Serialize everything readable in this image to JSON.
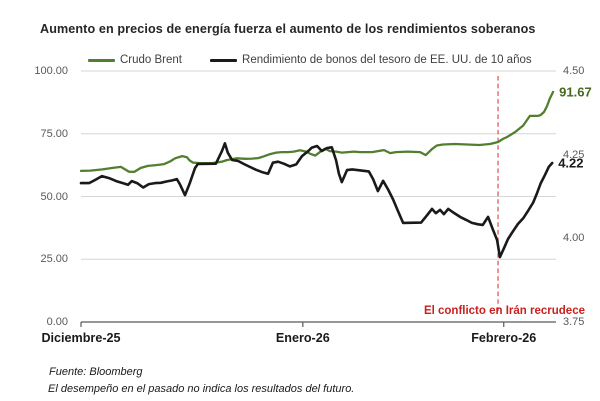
{
  "chart": {
    "title": "Aumento en precios de energía fuerza el aumento de los rendimientos soberanos",
    "legend": [
      {
        "label": "Crudo Brent",
        "color": "#527f2f"
      },
      {
        "label": "Rendimiento de bonos del tesoro de EE. UU. de 10 años",
        "color": "#1a1a1a"
      }
    ],
    "source": "Fuente: Bloomberg",
    "disclaimer": "El desempeño en el pasado no indica los resultados del futuro."
  },
  "chart_data": {
    "type": "line",
    "title": "Aumento en precios de energía fuerza el aumento de los rendimientos soberanos",
    "grid": true,
    "legend_position": "top",
    "x_axis": {
      "tick_labels": [
        "Diciembre-25",
        "Enero-26",
        "Febrero-26"
      ],
      "tick_positions": [
        0.0,
        0.467,
        0.89
      ]
    },
    "y_axis_left": {
      "range": [
        0,
        100
      ],
      "tick_values": [
        100,
        75,
        50,
        25,
        0
      ],
      "tick_labels": [
        "100.00",
        "75.00",
        "50.00",
        "25.00",
        "0.00"
      ]
    },
    "y_axis_right": {
      "range": [
        3.75,
        4.5
      ],
      "tick_values": [
        4.5,
        4.25,
        4.0,
        3.75
      ],
      "tick_labels": [
        "4.50",
        "4.25",
        "4.00",
        "3.75"
      ]
    },
    "annotation": {
      "text": "El conflicto en Irán recrudece",
      "x": 0.878,
      "text_color": "#c9211e",
      "line_color": "#e06666",
      "line_style": "dashed"
    },
    "series": [
      {
        "name": "Crudo Brent",
        "axis": "left",
        "color": "#527f2f",
        "end_label": "91.67",
        "end_label_color": "#44691f",
        "last_value": 91.67,
        "points": [
          [
            0.0,
            60.2
          ],
          [
            0.02,
            60.3
          ],
          [
            0.045,
            60.8
          ],
          [
            0.067,
            61.4
          ],
          [
            0.084,
            61.8
          ],
          [
            0.101,
            59.9
          ],
          [
            0.112,
            59.8
          ],
          [
            0.126,
            61.4
          ],
          [
            0.141,
            62.2
          ],
          [
            0.158,
            62.5
          ],
          [
            0.175,
            62.9
          ],
          [
            0.187,
            63.9
          ],
          [
            0.198,
            65.2
          ],
          [
            0.213,
            66.1
          ],
          [
            0.223,
            65.6
          ],
          [
            0.229,
            64.3
          ],
          [
            0.236,
            63.5
          ],
          [
            0.251,
            63.3
          ],
          [
            0.276,
            63.3
          ],
          [
            0.297,
            63.9
          ],
          [
            0.307,
            64.5
          ],
          [
            0.318,
            64.9
          ],
          [
            0.328,
            65.2
          ],
          [
            0.347,
            65.0
          ],
          [
            0.36,
            65.1
          ],
          [
            0.373,
            65.3
          ],
          [
            0.385,
            66.0
          ],
          [
            0.398,
            66.9
          ],
          [
            0.411,
            67.5
          ],
          [
            0.423,
            67.7
          ],
          [
            0.436,
            67.7
          ],
          [
            0.448,
            67.9
          ],
          [
            0.461,
            68.4
          ],
          [
            0.474,
            67.9
          ],
          [
            0.484,
            66.9
          ],
          [
            0.493,
            66.3
          ],
          [
            0.503,
            67.7
          ],
          [
            0.514,
            69.1
          ],
          [
            0.524,
            68.1
          ],
          [
            0.537,
            67.9
          ],
          [
            0.549,
            67.5
          ],
          [
            0.562,
            67.7
          ],
          [
            0.575,
            67.9
          ],
          [
            0.587,
            67.7
          ],
          [
            0.613,
            67.7
          ],
          [
            0.625,
            68.1
          ],
          [
            0.638,
            68.5
          ],
          [
            0.651,
            67.3
          ],
          [
            0.663,
            67.7
          ],
          [
            0.688,
            67.9
          ],
          [
            0.714,
            67.7
          ],
          [
            0.726,
            66.5
          ],
          [
            0.739,
            68.9
          ],
          [
            0.749,
            70.3
          ],
          [
            0.762,
            70.7
          ],
          [
            0.787,
            70.9
          ],
          [
            0.813,
            70.7
          ],
          [
            0.838,
            70.5
          ],
          [
            0.861,
            70.9
          ],
          [
            0.878,
            71.7
          ],
          [
            0.888,
            72.9
          ],
          [
            0.897,
            73.7
          ],
          [
            0.914,
            75.7
          ],
          [
            0.931,
            78.3
          ],
          [
            0.945,
            82.1
          ],
          [
            0.962,
            82.1
          ],
          [
            0.968,
            82.5
          ],
          [
            0.975,
            83.7
          ],
          [
            0.981,
            86.0
          ],
          [
            0.987,
            89.0
          ],
          [
            0.994,
            91.67
          ]
        ]
      },
      {
        "name": "Rendimiento de bonos del tesoro de EE. UU. de 10 años",
        "axis": "right",
        "color": "#1a1a1a",
        "end_label": "4.22",
        "end_label_color": "#1a1a1a",
        "last_value": 4.22,
        "points": [
          [
            0.0,
            4.165
          ],
          [
            0.017,
            4.165
          ],
          [
            0.029,
            4.174
          ],
          [
            0.044,
            4.186
          ],
          [
            0.059,
            4.18
          ],
          [
            0.074,
            4.171
          ],
          [
            0.088,
            4.165
          ],
          [
            0.099,
            4.16
          ],
          [
            0.107,
            4.171
          ],
          [
            0.118,
            4.165
          ],
          [
            0.131,
            4.152
          ],
          [
            0.143,
            4.162
          ],
          [
            0.156,
            4.165
          ],
          [
            0.168,
            4.166
          ],
          [
            0.181,
            4.17
          ],
          [
            0.192,
            4.173
          ],
          [
            0.202,
            4.177
          ],
          [
            0.208,
            4.162
          ],
          [
            0.219,
            4.129
          ],
          [
            0.229,
            4.165
          ],
          [
            0.24,
            4.21
          ],
          [
            0.246,
            4.222
          ],
          [
            0.284,
            4.223
          ],
          [
            0.297,
            4.262
          ],
          [
            0.303,
            4.284
          ],
          [
            0.309,
            4.256
          ],
          [
            0.318,
            4.234
          ],
          [
            0.331,
            4.231
          ],
          [
            0.343,
            4.222
          ],
          [
            0.356,
            4.213
          ],
          [
            0.368,
            4.205
          ],
          [
            0.381,
            4.198
          ],
          [
            0.394,
            4.193
          ],
          [
            0.404,
            4.226
          ],
          [
            0.415,
            4.229
          ],
          [
            0.427,
            4.223
          ],
          [
            0.44,
            4.215
          ],
          [
            0.453,
            4.221
          ],
          [
            0.465,
            4.245
          ],
          [
            0.478,
            4.26
          ],
          [
            0.486,
            4.271
          ],
          [
            0.497,
            4.276
          ],
          [
            0.507,
            4.261
          ],
          [
            0.518,
            4.27
          ],
          [
            0.528,
            4.272
          ],
          [
            0.537,
            4.233
          ],
          [
            0.543,
            4.193
          ],
          [
            0.549,
            4.168
          ],
          [
            0.56,
            4.204
          ],
          [
            0.571,
            4.206
          ],
          [
            0.606,
            4.2
          ],
          [
            0.615,
            4.177
          ],
          [
            0.625,
            4.141
          ],
          [
            0.636,
            4.172
          ],
          [
            0.646,
            4.147
          ],
          [
            0.657,
            4.116
          ],
          [
            0.667,
            4.083
          ],
          [
            0.678,
            4.046
          ],
          [
            0.716,
            4.047
          ],
          [
            0.728,
            4.068
          ],
          [
            0.739,
            4.088
          ],
          [
            0.747,
            4.075
          ],
          [
            0.756,
            4.085
          ],
          [
            0.764,
            4.072
          ],
          [
            0.773,
            4.088
          ],
          [
            0.785,
            4.076
          ],
          [
            0.798,
            4.064
          ],
          [
            0.811,
            4.055
          ],
          [
            0.823,
            4.046
          ],
          [
            0.836,
            4.042
          ],
          [
            0.846,
            4.04
          ],
          [
            0.857,
            4.064
          ],
          [
            0.867,
            4.027
          ],
          [
            0.876,
            3.995
          ],
          [
            0.882,
            3.944
          ],
          [
            0.891,
            3.972
          ],
          [
            0.899,
            3.998
          ],
          [
            0.909,
            4.02
          ],
          [
            0.92,
            4.043
          ],
          [
            0.931,
            4.06
          ],
          [
            0.941,
            4.082
          ],
          [
            0.952,
            4.107
          ],
          [
            0.96,
            4.135
          ],
          [
            0.968,
            4.165
          ],
          [
            0.977,
            4.19
          ],
          [
            0.985,
            4.214
          ],
          [
            0.992,
            4.225
          ]
        ]
      }
    ]
  }
}
